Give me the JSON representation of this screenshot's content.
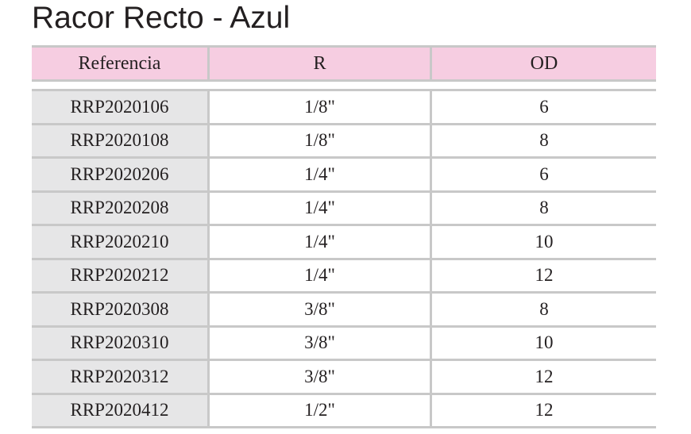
{
  "title": "Racor Recto - Azul",
  "table": {
    "headers": [
      "Referencia",
      "R",
      "OD"
    ],
    "rows": [
      [
        "RRP2020106",
        "1/8\"",
        "6"
      ],
      [
        "RRP2020108",
        "1/8\"",
        "8"
      ],
      [
        "RRP2020206",
        "1/4\"",
        "6"
      ],
      [
        "RRP2020208",
        "1/4\"",
        "8"
      ],
      [
        "RRP2020210",
        "1/4\"",
        "10"
      ],
      [
        "RRP2020212",
        "1/4\"",
        "12"
      ],
      [
        "RRP2020308",
        "3/8\"",
        "8"
      ],
      [
        "RRP2020310",
        "3/8\"",
        "10"
      ],
      [
        "RRP2020312",
        "3/8\"",
        "12"
      ],
      [
        "RRP2020412",
        "1/2\"",
        "12"
      ]
    ]
  },
  "colors": {
    "header_bg": "#f6cde1",
    "reference_col_bg": "#e6e6e7",
    "rule": "#c8c8c8",
    "text": "#231f20"
  }
}
